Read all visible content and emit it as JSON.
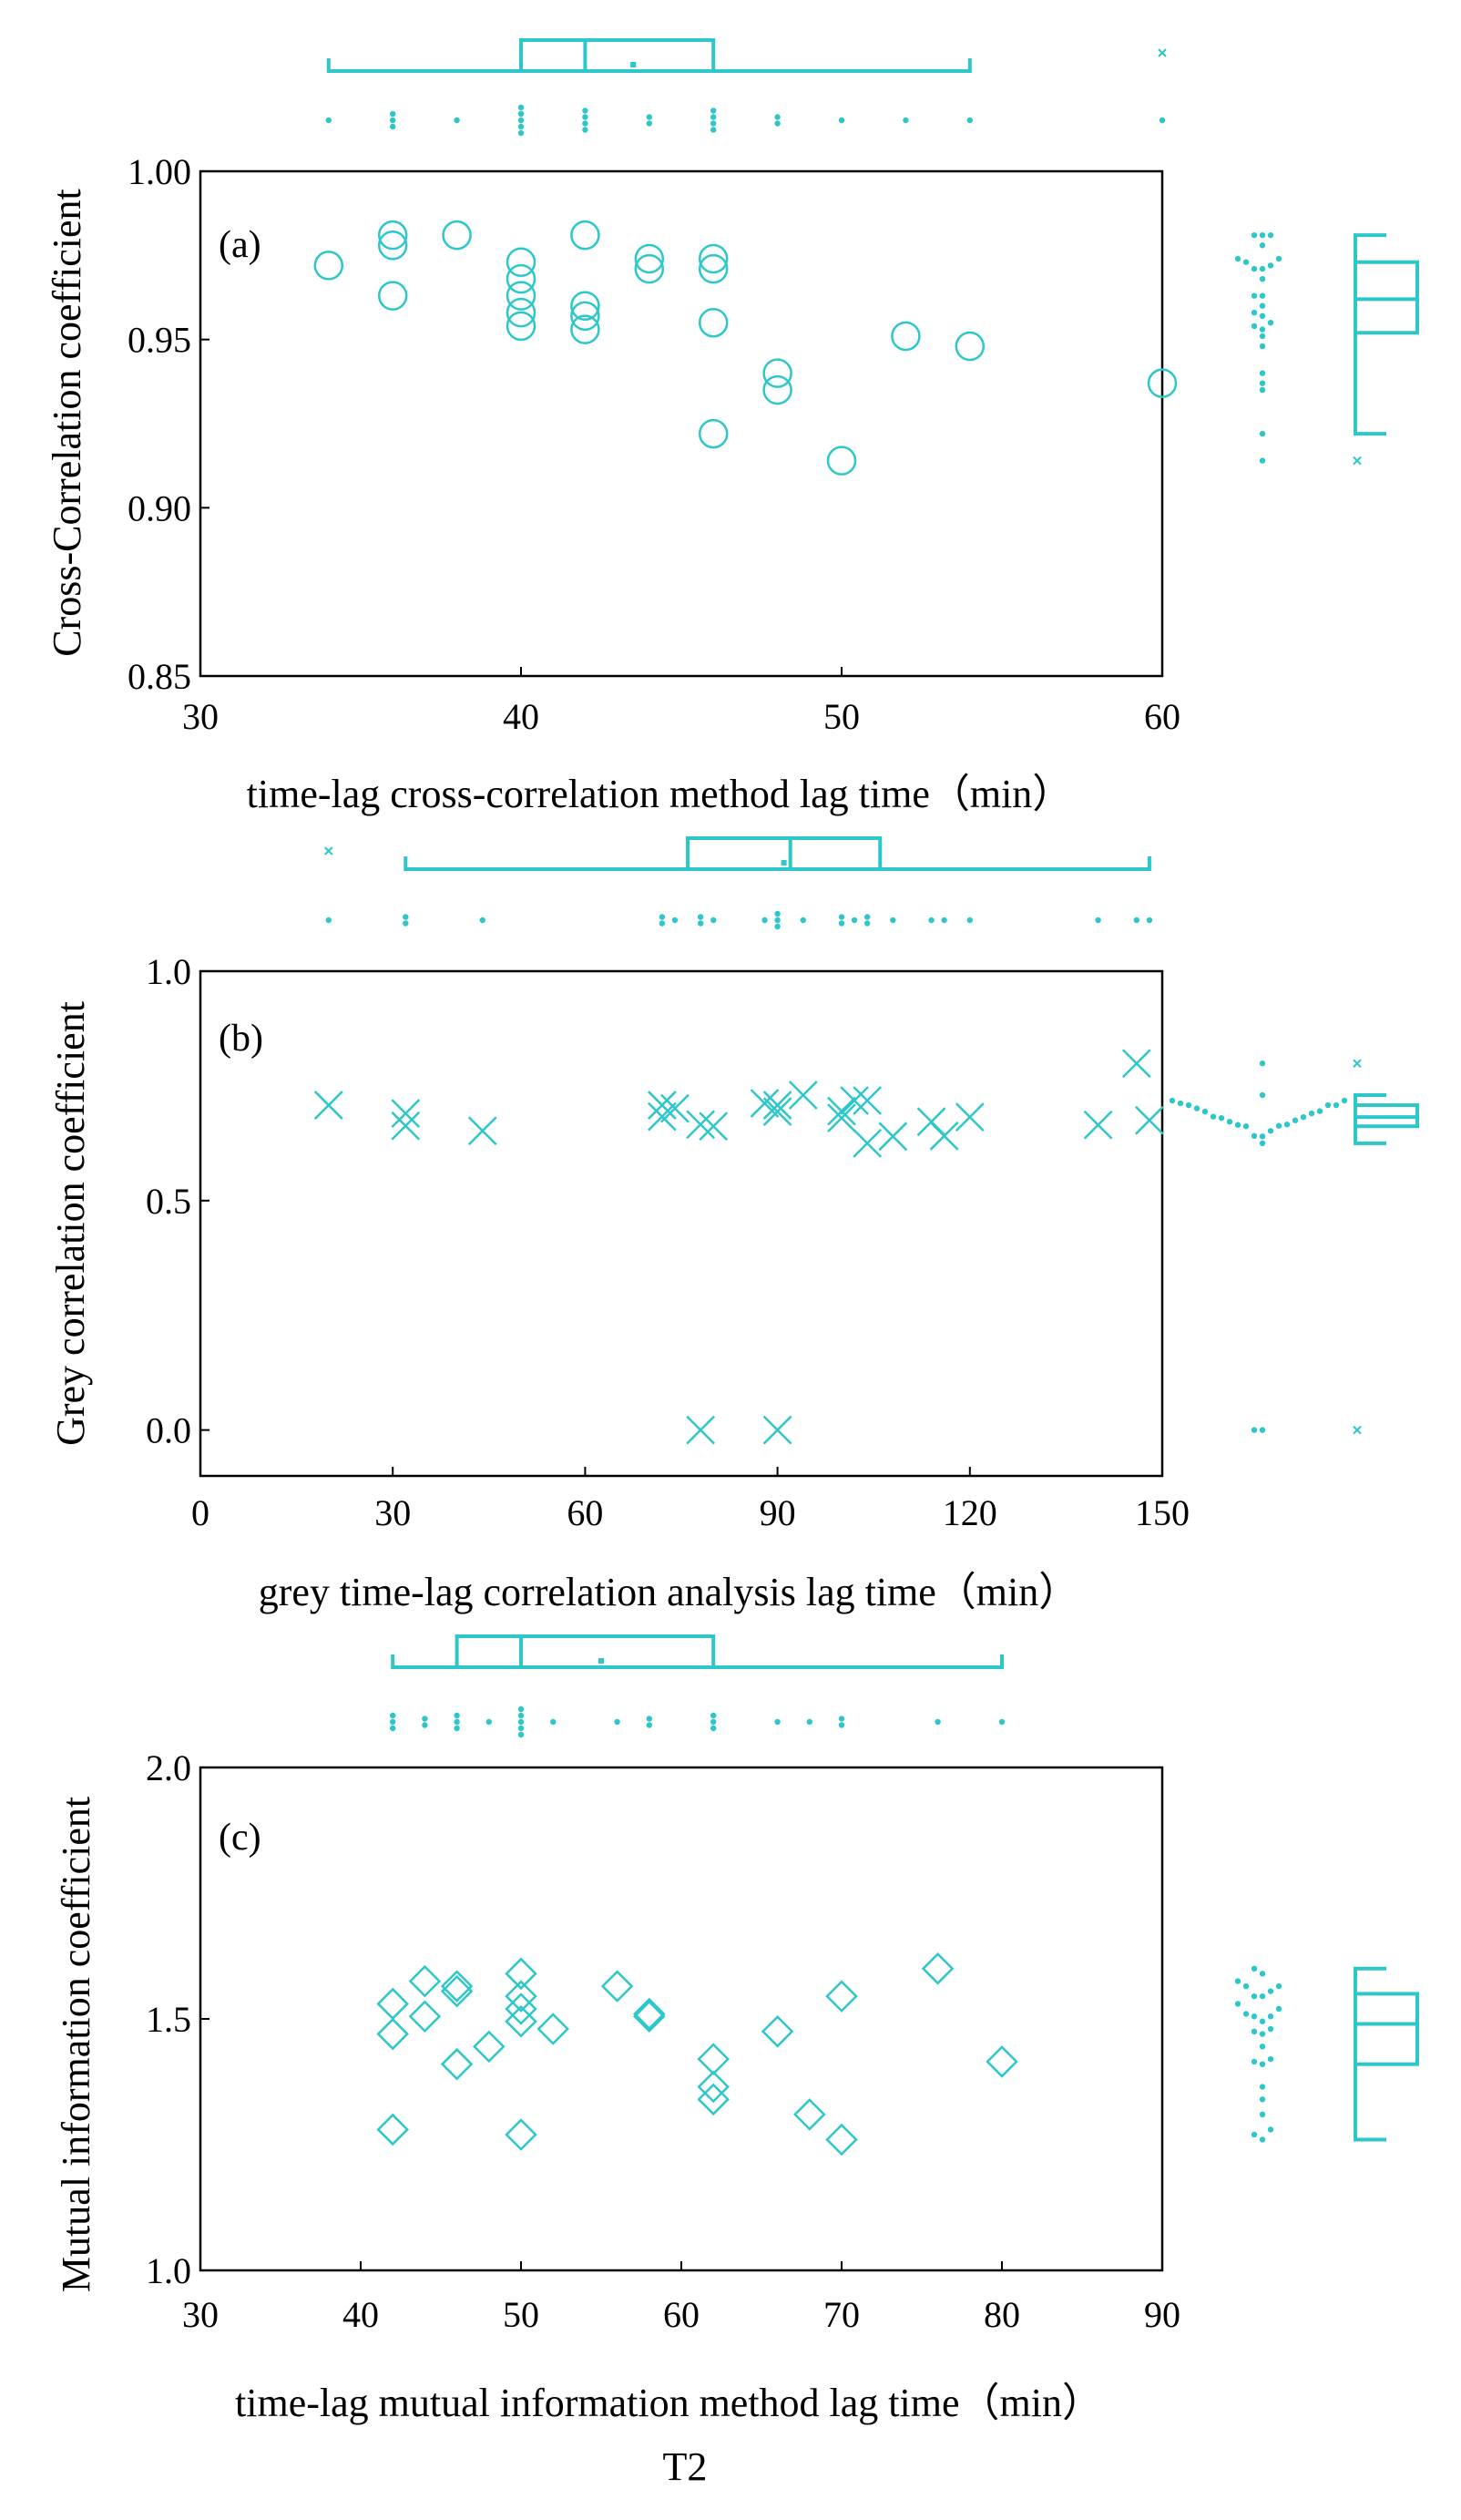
{
  "colors": {
    "marker": "#2ec7c9",
    "axis": "#000000"
  },
  "footer_label": "T2",
  "chart_data": [
    {
      "type": "scatter",
      "panel_label": "(a)",
      "marker": "circle",
      "xlabel": "time-lag cross-correlation method lag time（min）",
      "ylabel": "Cross-Correlation coefficient",
      "xlim": [
        30,
        60
      ],
      "ylim": [
        0.85,
        1.0
      ],
      "xticks": [
        30,
        40,
        50,
        60
      ],
      "xtick_labels": [
        "30",
        "40",
        "50",
        "60"
      ],
      "yticks": [
        0.85,
        0.9,
        0.95,
        1.0
      ],
      "ytick_labels": [
        "0.85",
        "0.90",
        "0.95",
        "1.00"
      ],
      "points": [
        [
          34,
          0.972
        ],
        [
          36,
          0.978
        ],
        [
          36,
          0.981
        ],
        [
          36,
          0.963
        ],
        [
          38,
          0.981
        ],
        [
          40,
          0.973
        ],
        [
          40,
          0.968
        ],
        [
          40,
          0.963
        ],
        [
          40,
          0.958
        ],
        [
          40,
          0.954
        ],
        [
          42,
          0.981
        ],
        [
          42,
          0.96
        ],
        [
          42,
          0.957
        ],
        [
          42,
          0.953
        ],
        [
          44,
          0.974
        ],
        [
          44,
          0.971
        ],
        [
          46,
          0.974
        ],
        [
          46,
          0.971
        ],
        [
          46,
          0.955
        ],
        [
          46,
          0.922
        ],
        [
          48,
          0.94
        ],
        [
          48,
          0.935
        ],
        [
          50,
          0.914
        ],
        [
          52,
          0.951
        ],
        [
          54,
          0.948
        ],
        [
          60,
          0.937
        ]
      ],
      "x_box": {
        "whisker_low": 34,
        "q1": 40,
        "median": 42,
        "q3": 46,
        "whisker_high": 54,
        "mean": 43.5,
        "outliers": [
          60
        ]
      },
      "y_box": {
        "whisker_low": 0.922,
        "q1": 0.952,
        "median": 0.962,
        "q3": 0.973,
        "whisker_high": 0.981,
        "outliers": [
          0.914
        ]
      }
    },
    {
      "type": "scatter",
      "panel_label": "(b)",
      "marker": "x",
      "xlabel": "grey time-lag correlation analysis lag time（min）",
      "ylabel": "Grey correlation coefficient",
      "xlim": [
        0,
        150
      ],
      "ylim": [
        -0.1,
        1.0
      ],
      "xticks": [
        0,
        30,
        60,
        90,
        120,
        150
      ],
      "xtick_labels": [
        "0",
        "30",
        "60",
        "90",
        "120",
        "150"
      ],
      "yticks": [
        0.0,
        0.5,
        1.0
      ],
      "ytick_labels": [
        "0.0",
        "0.5",
        "1.0"
      ],
      "points": [
        [
          20,
          0.708
        ],
        [
          32,
          0.69
        ],
        [
          32,
          0.663
        ],
        [
          44,
          0.652
        ],
        [
          72,
          0.708
        ],
        [
          72,
          0.683
        ],
        [
          74,
          0.701
        ],
        [
          78,
          0.0
        ],
        [
          78,
          0.666
        ],
        [
          80,
          0.662
        ],
        [
          88,
          0.712
        ],
        [
          90,
          0.708
        ],
        [
          90,
          0.694
        ],
        [
          90,
          0.0
        ],
        [
          94,
          0.73
        ],
        [
          100,
          0.68
        ],
        [
          100,
          0.695
        ],
        [
          102,
          0.718
        ],
        [
          104,
          0.718
        ],
        [
          104,
          0.625
        ],
        [
          108,
          0.64
        ],
        [
          114,
          0.672
        ],
        [
          116,
          0.641
        ],
        [
          120,
          0.682
        ],
        [
          140,
          0.665
        ],
        [
          146,
          0.799
        ],
        [
          148,
          0.675
        ]
      ],
      "x_box": {
        "whisker_low": 32,
        "q1": 76,
        "median": 92,
        "q3": 106,
        "whisker_high": 148,
        "mean": 91,
        "outliers": [
          20
        ]
      },
      "y_box": {
        "whisker_low": 0.625,
        "q1": 0.662,
        "median": 0.682,
        "q3": 0.708,
        "whisker_high": 0.73,
        "outliers": [
          0.799,
          0.0
        ]
      }
    },
    {
      "type": "scatter",
      "panel_label": "(c)",
      "marker": "diamond",
      "xlabel": "time-lag mutual information method lag time（min）",
      "ylabel": "Mutual information coefficient",
      "xlim": [
        30,
        90
      ],
      "ylim": [
        1.0,
        2.0
      ],
      "xticks": [
        30,
        40,
        50,
        60,
        70,
        80,
        90
      ],
      "xtick_labels": [
        "30",
        "40",
        "50",
        "60",
        "70",
        "80",
        "90"
      ],
      "yticks": [
        1.0,
        1.5,
        2.0
      ],
      "ytick_labels": [
        "1.0",
        "1.5",
        "2.0"
      ],
      "points": [
        [
          42,
          1.53
        ],
        [
          42,
          1.47
        ],
        [
          42,
          1.28
        ],
        [
          44,
          1.575
        ],
        [
          44,
          1.505
        ],
        [
          46,
          1.565
        ],
        [
          46,
          1.555
        ],
        [
          46,
          1.41
        ],
        [
          48,
          1.445
        ],
        [
          50,
          1.59
        ],
        [
          50,
          1.545
        ],
        [
          50,
          1.52
        ],
        [
          50,
          1.495
        ],
        [
          50,
          1.27
        ],
        [
          52,
          1.48
        ],
        [
          56,
          1.565
        ],
        [
          58,
          1.51
        ],
        [
          58,
          1.505
        ],
        [
          62,
          1.42
        ],
        [
          62,
          1.365
        ],
        [
          62,
          1.34
        ],
        [
          66,
          1.475
        ],
        [
          68,
          1.31
        ],
        [
          70,
          1.545
        ],
        [
          70,
          1.26
        ],
        [
          76,
          1.6
        ],
        [
          80,
          1.415
        ]
      ],
      "x_box": {
        "whisker_low": 42,
        "q1": 46,
        "median": 50,
        "q3": 62,
        "whisker_high": 80,
        "mean": 55,
        "outliers": []
      },
      "y_box": {
        "whisker_low": 1.26,
        "q1": 1.41,
        "median": 1.49,
        "q3": 1.55,
        "whisker_high": 1.6,
        "outliers": []
      }
    }
  ]
}
